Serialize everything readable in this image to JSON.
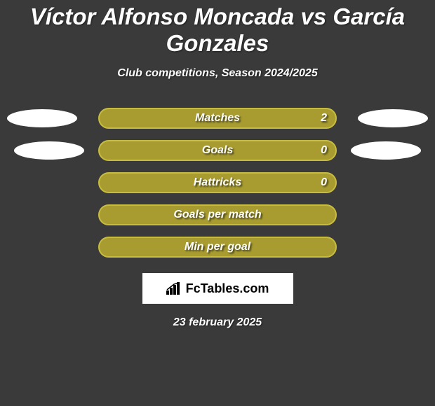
{
  "title": "Víctor Alfonso Moncada vs García Gonzales",
  "subtitle": "Club competitions, Season 2024/2025",
  "date": "23 february 2025",
  "logo_text": "FcTables.com",
  "background_color": "#3a3a3a",
  "bar_fill_color": "#a89c30",
  "bar_border_color": "#c8bc40",
  "ellipse_color": "#ffffff",
  "rows": [
    {
      "label": "Matches",
      "value": "2",
      "left_ellipse": true,
      "right_ellipse": true
    },
    {
      "label": "Goals",
      "value": "0",
      "left_ellipse": true,
      "right_ellipse": true
    },
    {
      "label": "Hattricks",
      "value": "0",
      "left_ellipse": false,
      "right_ellipse": false
    },
    {
      "label": "Goals per match",
      "value": "",
      "left_ellipse": false,
      "right_ellipse": false
    },
    {
      "label": "Min per goal",
      "value": "",
      "left_ellipse": false,
      "right_ellipse": false
    }
  ],
  "left_ellipse_offsets": [
    0,
    10
  ],
  "right_ellipse_offsets": [
    0,
    10
  ]
}
